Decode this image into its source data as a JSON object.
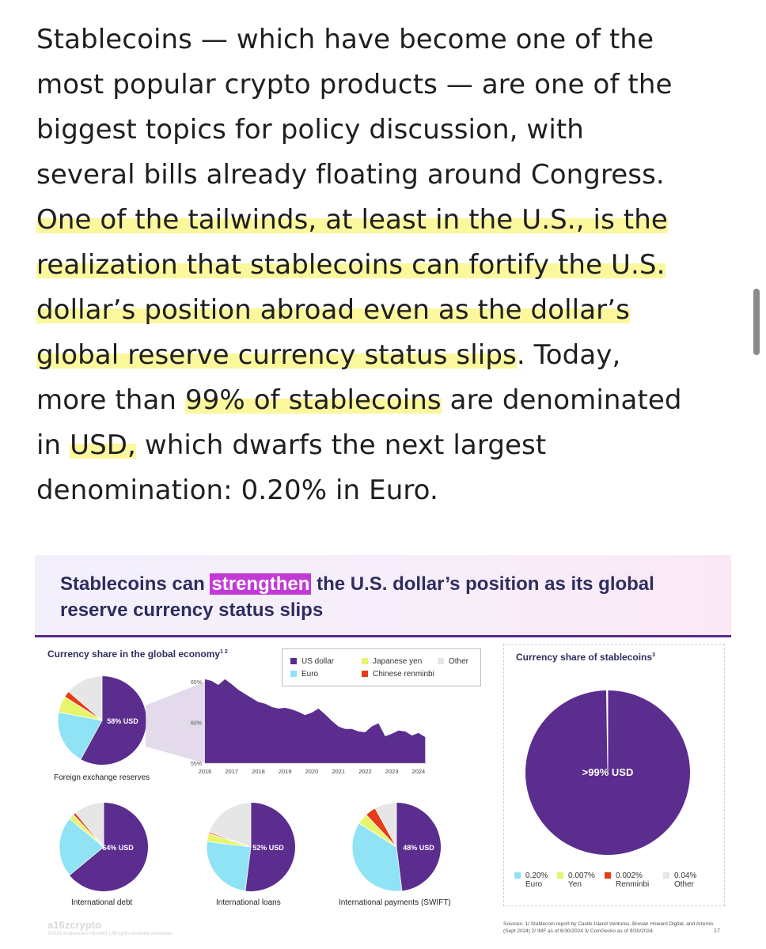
{
  "article": {
    "lines": [
      {
        "segments": [
          {
            "t": "Stablecoins — which have become one of the",
            "h": false
          }
        ]
      },
      {
        "segments": [
          {
            "t": "most popular crypto products — are one of the",
            "h": false
          }
        ]
      },
      {
        "segments": [
          {
            "t": "biggest topics for policy discussion, with",
            "h": false
          }
        ]
      },
      {
        "segments": [
          {
            "t": "several bills already floating around Congress.",
            "h": false
          }
        ]
      },
      {
        "segments": [
          {
            "t": "One of the tailwinds, at least in the U.S., is the",
            "h": true
          }
        ]
      },
      {
        "segments": [
          {
            "t": "realization that stablecoins can fortify the U.S.",
            "h": true
          }
        ]
      },
      {
        "segments": [
          {
            "t": "dollar’s position abroad even as the dollar’s",
            "h": true
          }
        ]
      },
      {
        "segments": [
          {
            "t": "global reserve currency status slips",
            "h": true
          },
          {
            "t": ". Today,",
            "h": false
          }
        ]
      },
      {
        "segments": [
          {
            "t": "more than ",
            "h": false
          },
          {
            "t": "99% of stablecoins",
            "h": true
          },
          {
            "t": " are denominated",
            "h": false
          }
        ]
      },
      {
        "segments": [
          {
            "t": "in ",
            "h": false
          },
          {
            "t": "USD,",
            "h": true
          },
          {
            "t": " which dwarfs the next largest",
            "h": false
          }
        ]
      },
      {
        "segments": [
          {
            "t": "denomination: 0.20% in Euro.",
            "h": false
          }
        ]
      }
    ]
  },
  "slide": {
    "title_before": "Stablecoins can ",
    "title_mark": "strengthen",
    "title_after": " the U.S. dollar’s position as its global",
    "title_line2": "reserve currency status slips",
    "left_heading": "Currency share in the global economy",
    "left_heading_sup": "1 2",
    "right_heading": "Currency share of stablecoins",
    "right_heading_sup": "3",
    "legend": [
      {
        "label": "US dollar",
        "color": "#5b2d8e"
      },
      {
        "label": "Japanese yen",
        "color": "#e6f56a"
      },
      {
        "label": "Other",
        "color": "#e6e6e6"
      },
      {
        "label": "Euro",
        "color": "#8fe3f5"
      },
      {
        "label": "Chinese renminbi",
        "color": "#e63c19"
      }
    ],
    "colors": {
      "usd": "#5b2d8e",
      "euro": "#8fe3f5",
      "yen": "#e6f56a",
      "rmb": "#e63c19",
      "other": "#e6e6e6"
    },
    "pies": [
      {
        "label": "58% USD",
        "caption": "Foreign exchange reserves",
        "usd": 58,
        "euro": 20,
        "yen": 6,
        "rmb": 2.3,
        "other": 13.7
      },
      {
        "label": "64% USD",
        "caption": "International debt",
        "usd": 64,
        "euro": 22,
        "yen": 2,
        "rmb": 1,
        "other": 11
      },
      {
        "label": "52% USD",
        "caption": "International loans",
        "usd": 52,
        "euro": 25,
        "yen": 3,
        "rmb": 0.5,
        "other": 19.5
      },
      {
        "label": "48% USD",
        "caption": "International payments (SWIFT)",
        "usd": 48,
        "euro": 36,
        "yen": 4,
        "rmb": 4,
        "other": 8
      },
      {
        "label": ">99% USD",
        "caption": "",
        "usd": 99.7,
        "euro": 0.2,
        "yen": 0.007,
        "rmb": 0.002,
        "other": 0.04
      }
    ],
    "stable_legend": [
      {
        "value": "0.20%",
        "name": "Euro",
        "color": "#8fe3f5"
      },
      {
        "value": "0.007%",
        "name": "Yen",
        "color": "#e6f56a"
      },
      {
        "value": "0.002%",
        "name": "Renminbi",
        "color": "#e63c19"
      },
      {
        "value": "0.04%",
        "name": "Other",
        "color": "#e6e6e6"
      }
    ],
    "chart_data": {
      "type": "area",
      "title": "",
      "xlabel": "",
      "ylabel": "",
      "x_ticks": [
        "2016",
        "2017",
        "2018",
        "2019",
        "2020",
        "2021",
        "2022",
        "2023",
        "2024"
      ],
      "y_ticks": [
        "65%",
        "60%",
        "55%"
      ],
      "ylim": [
        55,
        65
      ],
      "series": [
        {
          "name": "US dollar",
          "x": [
            2016.0,
            2016.25,
            2016.5,
            2016.75,
            2017.0,
            2017.25,
            2017.5,
            2017.75,
            2018.0,
            2018.25,
            2018.5,
            2018.75,
            2019.0,
            2019.25,
            2019.5,
            2019.75,
            2020.0,
            2020.25,
            2020.5,
            2020.75,
            2021.0,
            2021.25,
            2021.5,
            2021.75,
            2022.0,
            2022.25,
            2022.5,
            2022.75,
            2023.0,
            2023.25,
            2023.5,
            2023.75,
            2024.0,
            2024.25
          ],
          "values": [
            65.3,
            65.1,
            64.6,
            65.3,
            64.7,
            64.0,
            63.5,
            63.0,
            62.5,
            62.3,
            61.9,
            61.7,
            61.8,
            61.6,
            61.3,
            60.9,
            61.2,
            61.7,
            61.0,
            60.2,
            59.5,
            59.2,
            59.2,
            58.9,
            58.8,
            59.5,
            59.9,
            58.3,
            58.6,
            59.0,
            58.9,
            58.4,
            58.7,
            58.2
          ]
        }
      ]
    },
    "footer_logo": "a16zcrypto",
    "footer_copy": "©2024 Andreessen Horowitz | All rights reserved worldwide.",
    "sources": "Sources: 1/ Stablecoin report by Castle Island Ventures, Brevan Howard Digital, and Artemis (Sept 2024) 2/ IMF as of 6/30/2024 3/ CoinGecko as of 9/30/2024.",
    "page_number": "17"
  }
}
